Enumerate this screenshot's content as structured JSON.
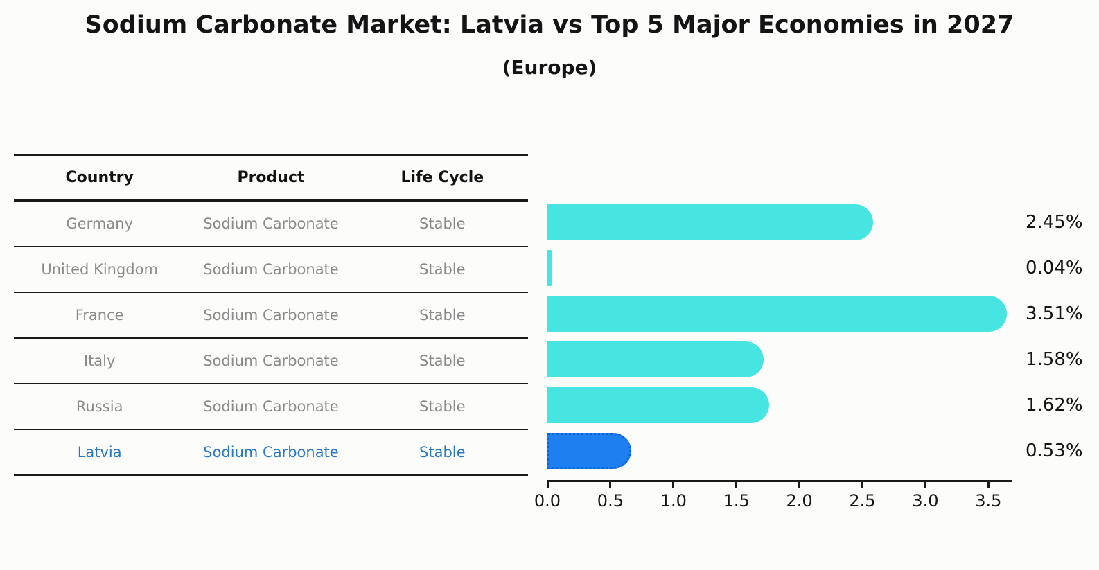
{
  "title": "Sodium Carbonate Market: Latvia vs Top 5 Major Economies in 2027",
  "subtitle": "(Europe)",
  "table": {
    "headers": [
      "Country",
      "Product",
      "Life Cycle"
    ],
    "rows": [
      {
        "country": "Germany",
        "product": "Sodium Carbonate",
        "life_cycle": "Stable",
        "highlight": false
      },
      {
        "country": "United Kingdom",
        "product": "Sodium Carbonate",
        "life_cycle": "Stable",
        "highlight": false
      },
      {
        "country": "France",
        "product": "Sodium Carbonate",
        "life_cycle": "Stable",
        "highlight": false
      },
      {
        "country": "Italy",
        "product": "Sodium Carbonate",
        "life_cycle": "Stable",
        "highlight": false
      },
      {
        "country": "Russia",
        "product": "Sodium Carbonate",
        "life_cycle": "Stable",
        "highlight": true
      }
    ],
    "rows_note": "last row below is highlighted",
    "last_row": {
      "country": "Latvia",
      "product": "Sodium Carbonate",
      "life_cycle": "Stable"
    }
  },
  "chart_data": {
    "type": "bar",
    "orientation": "horizontal",
    "title": "Sodium Carbonate Market: Latvia vs Top 5 Major Economies in 2027",
    "subtitle": "(Europe)",
    "categories": [
      "Germany",
      "United Kingdom",
      "France",
      "Italy",
      "Russia",
      "Latvia"
    ],
    "values": [
      2.45,
      0.04,
      3.51,
      1.58,
      1.62,
      0.53
    ],
    "labels": [
      "2.45%",
      "0.04%",
      "3.51%",
      "1.58%",
      "1.62%",
      "0.53%"
    ],
    "value_suffix": "%",
    "xticks": [
      "0.0",
      "0.5",
      "1.0",
      "1.5",
      "2.0",
      "2.5",
      "3.0",
      "3.5"
    ],
    "xlim": [
      0,
      3.68
    ],
    "grid": false,
    "legend": false,
    "bar_color": "#47e5e2",
    "highlight_index": 5,
    "highlight_color": "#1e80f0",
    "highlight_border_color": "#0e63da",
    "text_color": "#141414",
    "row_text_color": "#8a8a8a",
    "highlight_text_color": "#2878c8"
  }
}
